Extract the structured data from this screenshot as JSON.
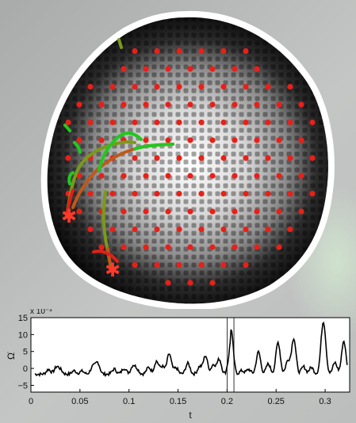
{
  "image": {
    "type": "particle-raft-simulation",
    "disk_fill": "radial grayscale (white center, black rim)",
    "rim_color": "#ffffff",
    "marker_color": "#e8201a",
    "trail_colors": [
      "#22c81e",
      "#7a9a18",
      "#c0581a",
      "#e02018"
    ],
    "star_marker_color": "#ff3a2a"
  },
  "chart_data": {
    "type": "line",
    "xlabel": "t",
    "ylabel": "Ω̇",
    "scale_label": "x 10⁻³",
    "xlim": [
      0,
      0.325
    ],
    "ylim": [
      -7,
      15
    ],
    "xticks": [
      "0",
      "0.05",
      "0.1",
      "0.15",
      "0.2",
      "0.25",
      "0.3"
    ],
    "yticks": [
      "15",
      "10",
      "5",
      "0",
      "−5"
    ],
    "grid": false,
    "legend": "none",
    "line_color": "#000000",
    "markers_t": [
      0.2,
      0.207
    ],
    "baseline": -1.7,
    "spikes": [
      {
        "t": 0.018,
        "h": 1.4
      },
      {
        "t": 0.026,
        "h": 2.0
      },
      {
        "t": 0.03,
        "h": 1.2
      },
      {
        "t": 0.044,
        "h": 1.0
      },
      {
        "t": 0.052,
        "h": 0.9
      },
      {
        "t": 0.063,
        "h": 2.2
      },
      {
        "t": 0.068,
        "h": 3.4
      },
      {
        "t": 0.085,
        "h": 1.5
      },
      {
        "t": 0.095,
        "h": 1.8
      },
      {
        "t": 0.104,
        "h": 2.4
      },
      {
        "t": 0.108,
        "h": 1.4
      },
      {
        "t": 0.12,
        "h": 2.0
      },
      {
        "t": 0.128,
        "h": 3.8
      },
      {
        "t": 0.134,
        "h": 2.2
      },
      {
        "t": 0.141,
        "h": 6.0
      },
      {
        "t": 0.148,
        "h": 1.8
      },
      {
        "t": 0.16,
        "h": 3.2
      },
      {
        "t": 0.172,
        "h": 2.2
      },
      {
        "t": 0.178,
        "h": 5.4
      },
      {
        "t": 0.186,
        "h": 2.8
      },
      {
        "t": 0.192,
        "h": 4.4
      },
      {
        "t": 0.204,
        "h": 13.4
      },
      {
        "t": 0.215,
        "h": 1.0
      },
      {
        "t": 0.222,
        "h": 1.4
      },
      {
        "t": 0.232,
        "h": 6.6
      },
      {
        "t": 0.242,
        "h": 3.0
      },
      {
        "t": 0.252,
        "h": 9.4
      },
      {
        "t": 0.262,
        "h": 4.0
      },
      {
        "t": 0.268,
        "h": 10.6
      },
      {
        "t": 0.278,
        "h": 2.2
      },
      {
        "t": 0.286,
        "h": 2.0
      },
      {
        "t": 0.297,
        "h": 7.0
      },
      {
        "t": 0.299,
        "h": 10.2
      },
      {
        "t": 0.31,
        "h": 3.4
      },
      {
        "t": 0.319,
        "h": 9.8
      }
    ]
  }
}
